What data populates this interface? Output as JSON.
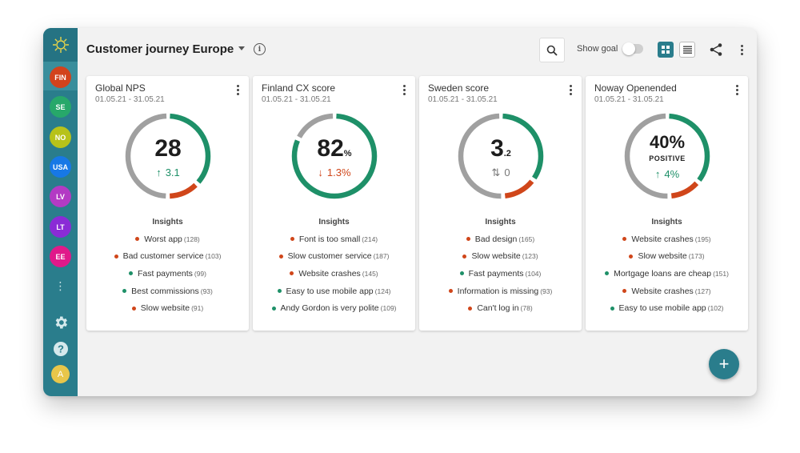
{
  "colors": {
    "accent": "#2a7d8c",
    "green": "#1e9068",
    "red": "#d0461a",
    "grey": "#a0a0a0"
  },
  "header": {
    "title": "Customer journey Europe",
    "info_icon": "i",
    "show_goal_label": "Show goal",
    "show_goal_on": false
  },
  "sidebar": {
    "items": [
      {
        "label": "FIN",
        "color": "#d2431c"
      },
      {
        "label": "SE",
        "color": "#27a86a"
      },
      {
        "label": "NO",
        "color": "#b7c21a"
      },
      {
        "label": "USA",
        "color": "#1778e6"
      },
      {
        "label": "LV",
        "color": "#b33ac4"
      },
      {
        "label": "LT",
        "color": "#8a2bd6"
      },
      {
        "label": "EE",
        "color": "#e0198a"
      }
    ],
    "more_glyph": "⋮",
    "user_avatar": "A"
  },
  "cards": [
    {
      "title": "Global NPS",
      "date": "01.05.21 - 31.05.21",
      "value": "28",
      "suffix": "",
      "label": "",
      "delta": "3.1",
      "delta_dir": "up",
      "gauge": {
        "green": 0.37,
        "red": 0.13,
        "grey": 0.5
      },
      "insights": [
        {
          "text": "Worst app",
          "count": "(128)",
          "tone": "red"
        },
        {
          "text": "Bad customer service",
          "count": "(103)",
          "tone": "red"
        },
        {
          "text": "Fast payments",
          "count": "(99)",
          "tone": "green"
        },
        {
          "text": "Best commissions",
          "count": "(93)",
          "tone": "green"
        },
        {
          "text": "Slow website",
          "count": "(91)",
          "tone": "red"
        }
      ]
    },
    {
      "title": "Finland CX score",
      "date": "01.05.21 - 31.05.21",
      "value": "82",
      "suffix": "%",
      "label": "",
      "delta": "1.3%",
      "delta_dir": "down",
      "gauge": {
        "green": 0.82,
        "red": 0.0,
        "grey": 0.18
      },
      "insights": [
        {
          "text": "Font is too small",
          "count": "(214)",
          "tone": "red"
        },
        {
          "text": "Slow customer service",
          "count": "(187)",
          "tone": "red"
        },
        {
          "text": "Website crashes",
          "count": "(145)",
          "tone": "red"
        },
        {
          "text": "Easy to use mobile app",
          "count": "(124)",
          "tone": "green"
        },
        {
          "text": "Andy Gordon is very polite",
          "count": "(109)",
          "tone": "green"
        }
      ]
    },
    {
      "title": "Sweden score",
      "date": "01.05.21 - 31.05.21",
      "value": "3",
      "suffix": ".2",
      "label": "",
      "delta": "0",
      "delta_dir": "flat",
      "gauge": {
        "green": 0.35,
        "red": 0.14,
        "grey": 0.51
      },
      "insights": [
        {
          "text": "Bad design",
          "count": "(165)",
          "tone": "red"
        },
        {
          "text": "Slow website",
          "count": "(123)",
          "tone": "red"
        },
        {
          "text": "Fast payments",
          "count": "(104)",
          "tone": "green"
        },
        {
          "text": "Information is missing",
          "count": "(93)",
          "tone": "red"
        },
        {
          "text": "Can't log in",
          "count": "(78)",
          "tone": "red"
        }
      ]
    },
    {
      "title": "Noway Openended",
      "date": "01.05.21 - 31.05.21",
      "value": "40%",
      "suffix": "",
      "label": "POSITIVE",
      "delta": "4%",
      "delta_dir": "up",
      "gauge": {
        "green": 0.36,
        "red": 0.13,
        "grey": 0.51
      },
      "insights": [
        {
          "text": "Website crashes",
          "count": "(195)",
          "tone": "red"
        },
        {
          "text": "Slow website",
          "count": "(173)",
          "tone": "red"
        },
        {
          "text": "Mortgage loans are cheap",
          "count": "(151)",
          "tone": "green"
        },
        {
          "text": "Website crashes",
          "count": "(127)",
          "tone": "red"
        },
        {
          "text": "Easy to use mobile app",
          "count": "(102)",
          "tone": "green"
        }
      ]
    }
  ],
  "insights_heading": "Insights",
  "fab_label": "+"
}
